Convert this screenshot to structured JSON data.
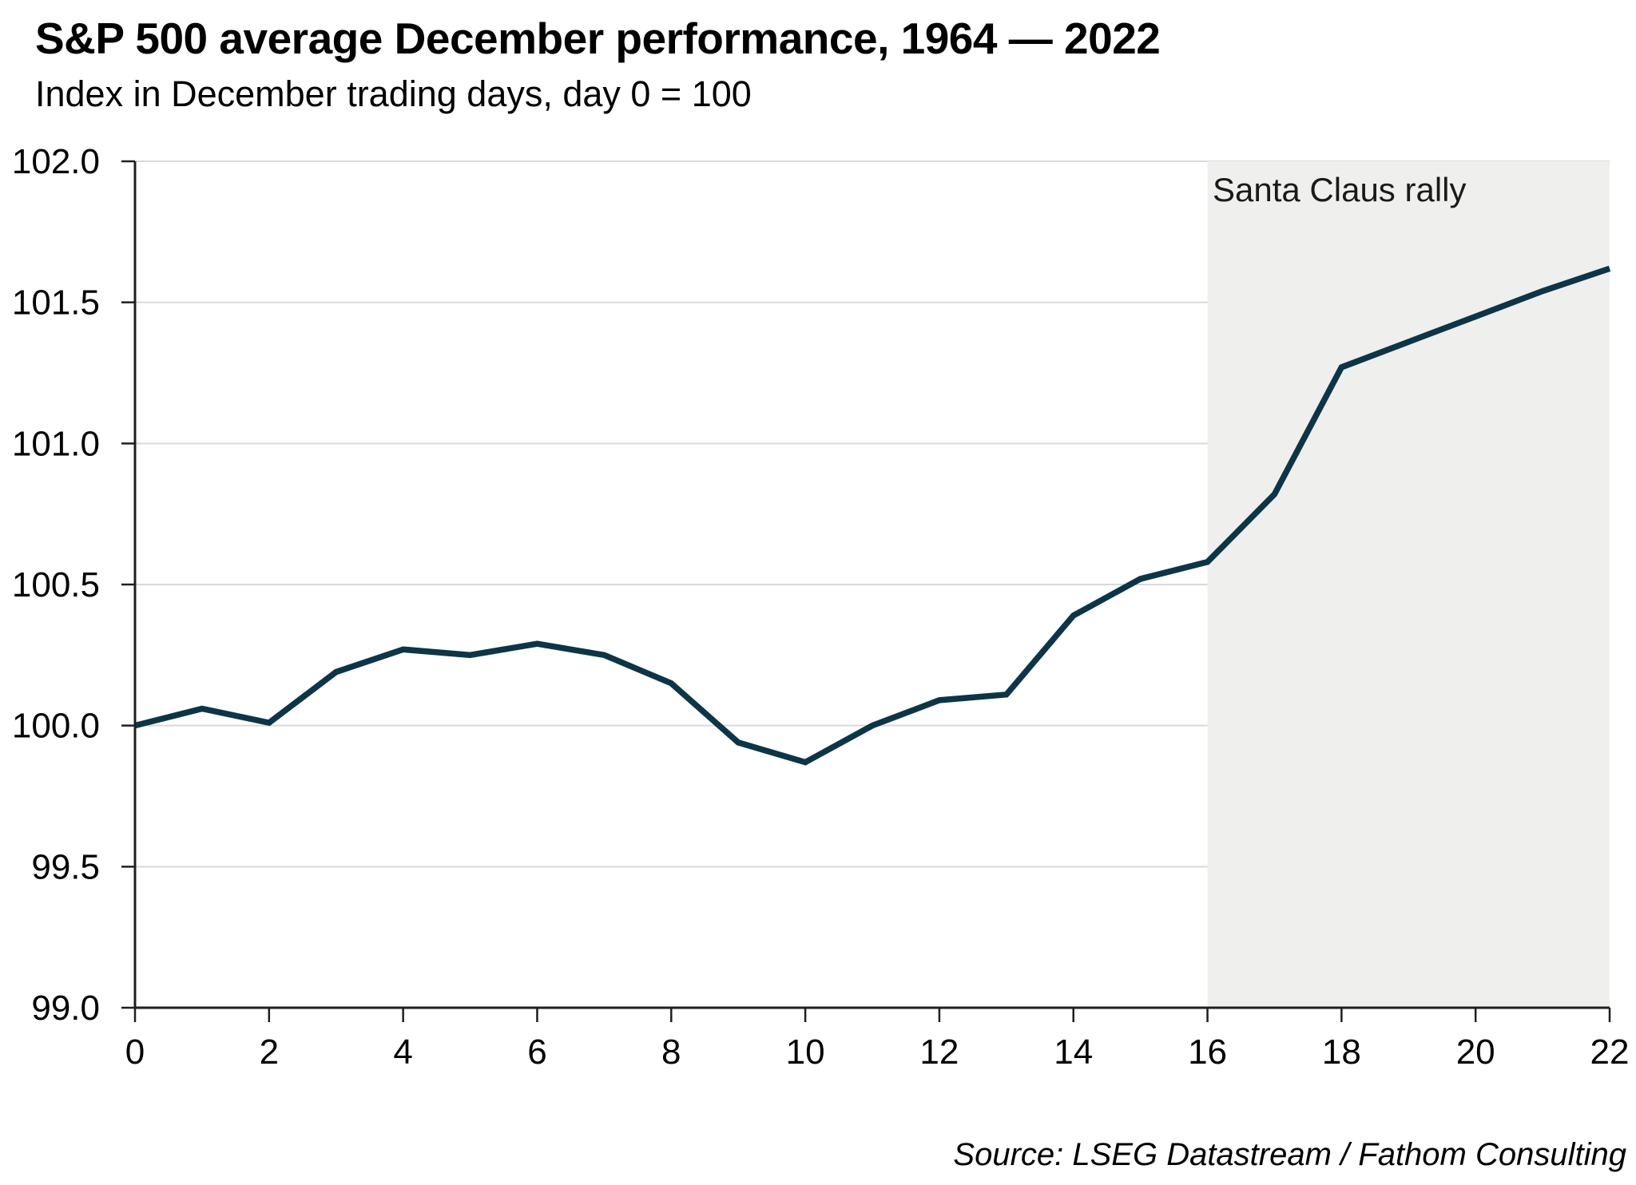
{
  "page": {
    "title": "S&P 500 average December performance, 1964 — 2022",
    "subtitle": "Index in December trading days, day 0 = 100",
    "source": "Source: LSEG Datastream / Fathom Consulting"
  },
  "chart_data": {
    "type": "line",
    "title": "S&P 500 average December performance, 1964 — 2022",
    "subtitle": "Index in December trading days, day 0 = 100",
    "x": [
      0,
      1,
      2,
      3,
      4,
      5,
      6,
      7,
      8,
      9,
      10,
      11,
      12,
      13,
      14,
      15,
      16,
      17,
      18,
      19,
      20,
      21,
      22
    ],
    "values": [
      100.0,
      100.06,
      100.01,
      100.19,
      100.27,
      100.25,
      100.29,
      100.25,
      100.15,
      99.94,
      99.87,
      100.0,
      100.09,
      100.11,
      100.39,
      100.52,
      100.58,
      100.82,
      101.27,
      101.36,
      101.45,
      101.54,
      101.62
    ],
    "xlabel": "",
    "ylabel": "",
    "xlim": [
      0,
      22
    ],
    "ylim": [
      99.0,
      102.0
    ],
    "xtick_labels": [
      "0",
      "2",
      "4",
      "6",
      "8",
      "10",
      "12",
      "14",
      "16",
      "18",
      "20",
      "22"
    ],
    "ytick_labels": [
      "99.0",
      "99.5",
      "100.0",
      "100.5",
      "101.0",
      "101.5",
      "102.0"
    ],
    "grid": "horizontal",
    "legend": "none",
    "annotation": "Santa Claus rally",
    "shaded_region": {
      "label": "Santa Claus rally",
      "x_start": 16,
      "x_end": 22
    },
    "source": "Source: LSEG Datastream / Fathom Consulting",
    "colors": {
      "line": "#0e3448",
      "shade": "#efefee",
      "grid": "#d9d9d9",
      "axis": "#1f1f1f",
      "text": "#000000"
    }
  }
}
